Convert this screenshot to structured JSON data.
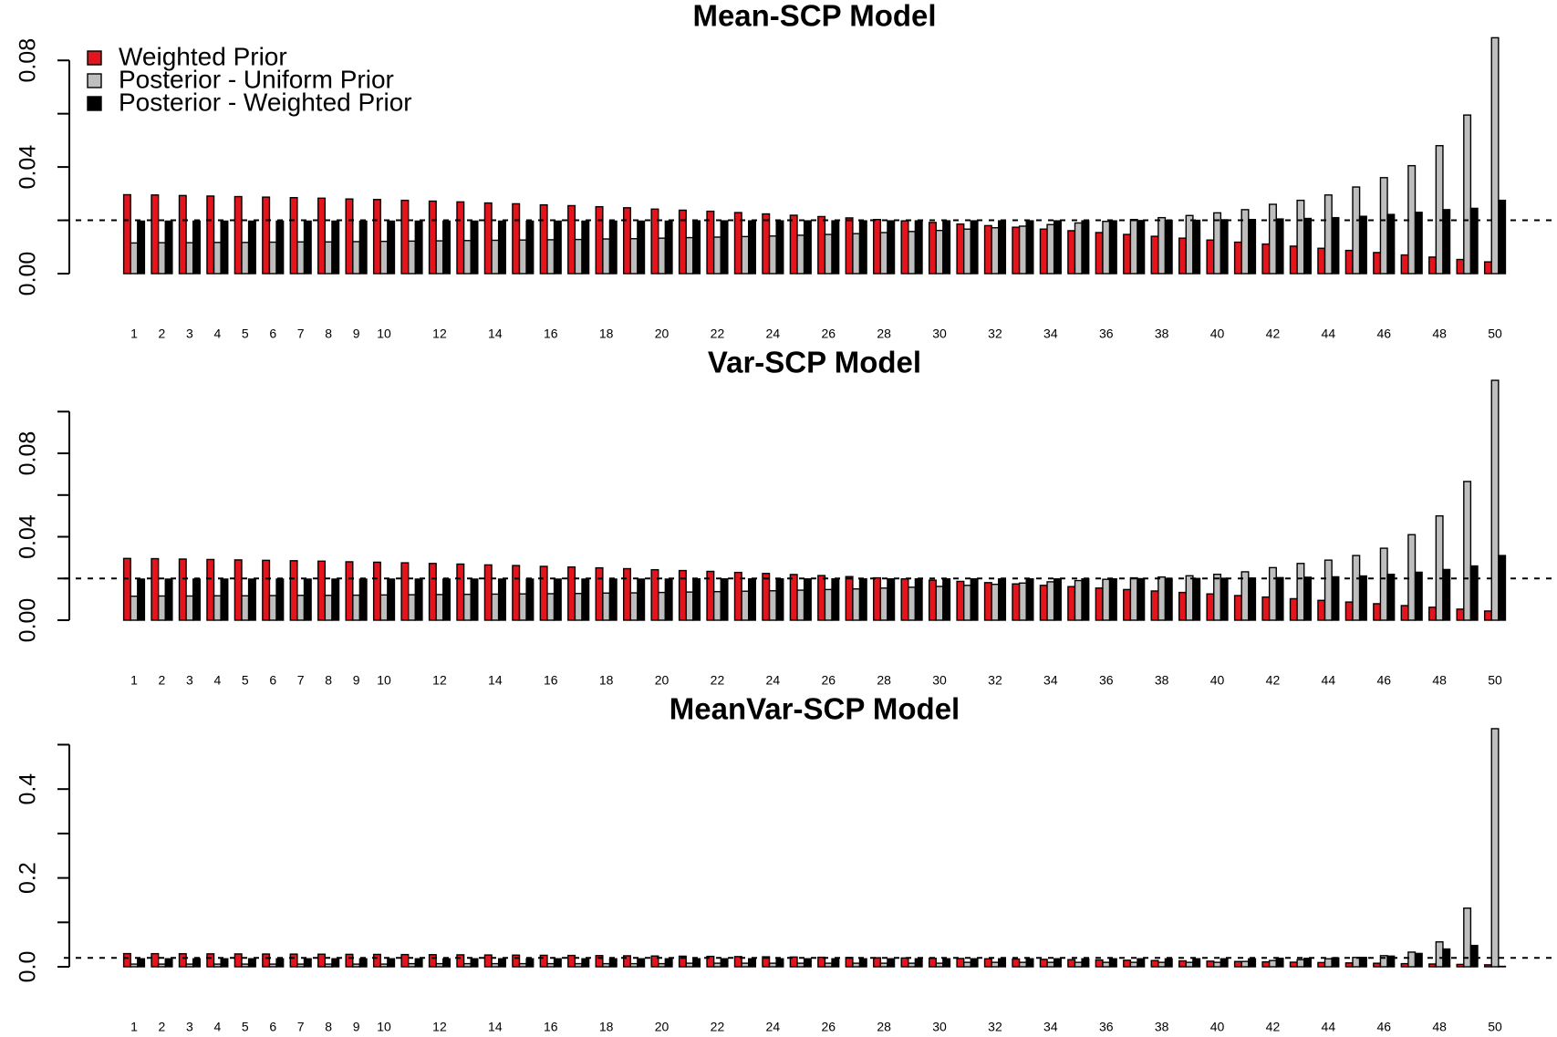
{
  "chart_data": [
    {
      "type": "bar",
      "title": "Mean-SCP Model",
      "categories": [
        1,
        2,
        3,
        4,
        5,
        6,
        7,
        8,
        9,
        10,
        null,
        12,
        null,
        14,
        null,
        16,
        null,
        18,
        null,
        20,
        null,
        22,
        null,
        24,
        null,
        26,
        null,
        28,
        null,
        30,
        null,
        32,
        null,
        34,
        null,
        36,
        null,
        38,
        null,
        40,
        null,
        42,
        null,
        44,
        null,
        46,
        null,
        48,
        null,
        50
      ],
      "series": [
        {
          "name": "Weighted Prior",
          "color": "#e3141c",
          "values": [
            0.0296,
            0.0295,
            0.0293,
            0.0291,
            0.0289,
            0.0287,
            0.0285,
            0.0283,
            0.028,
            0.0278,
            0.0275,
            0.0272,
            0.0269,
            0.0265,
            0.0262,
            0.0258,
            0.0255,
            0.0251,
            0.0247,
            0.0242,
            0.0238,
            0.0234,
            0.0229,
            0.0224,
            0.0219,
            0.0214,
            0.0209,
            0.0203,
            0.0198,
            0.0192,
            0.0186,
            0.018,
            0.0174,
            0.0167,
            0.0161,
            0.0154,
            0.0147,
            0.014,
            0.0133,
            0.0126,
            0.0118,
            0.0111,
            0.0103,
            0.0095,
            0.0087,
            0.0079,
            0.007,
            0.0062,
            0.0053,
            0.0044
          ]
        },
        {
          "name": "Posterior - Uniform Prior",
          "color": "#bebebe",
          "values": [
            0.0115,
            0.0116,
            0.0116,
            0.0117,
            0.0117,
            0.0118,
            0.0119,
            0.0119,
            0.012,
            0.0121,
            0.0122,
            0.0123,
            0.0124,
            0.0125,
            0.0126,
            0.0127,
            0.0128,
            0.013,
            0.0131,
            0.0133,
            0.0135,
            0.0137,
            0.0139,
            0.0141,
            0.0144,
            0.0147,
            0.015,
            0.0154,
            0.0158,
            0.0162,
            0.0167,
            0.0172,
            0.0178,
            0.0184,
            0.019,
            0.0196,
            0.0203,
            0.021,
            0.0218,
            0.0228,
            0.024,
            0.026,
            0.0275,
            0.0295,
            0.0325,
            0.036,
            0.0405,
            0.048,
            0.0595,
            0.0885
          ]
        },
        {
          "name": "Posterior - Weighted Prior",
          "color": "#000000",
          "values": [
            0.0197,
            0.0197,
            0.0197,
            0.0197,
            0.0197,
            0.0197,
            0.0197,
            0.0197,
            0.0197,
            0.0197,
            0.0197,
            0.0197,
            0.0197,
            0.0197,
            0.0197,
            0.0197,
            0.0197,
            0.0197,
            0.0197,
            0.0197,
            0.0198,
            0.0198,
            0.0198,
            0.0198,
            0.0198,
            0.0198,
            0.0198,
            0.0198,
            0.0198,
            0.0198,
            0.0198,
            0.0198,
            0.0198,
            0.0198,
            0.0198,
            0.0198,
            0.0199,
            0.02,
            0.02,
            0.0202,
            0.0203,
            0.0205,
            0.0207,
            0.021,
            0.0215,
            0.0222,
            0.023,
            0.024,
            0.0245,
            0.0275
          ]
        }
      ],
      "ylim": [
        0,
        0.09
      ],
      "yticks": [
        {
          "value": 0,
          "label": "0.00"
        },
        {
          "value": 0.04,
          "label": "0.04"
        },
        {
          "value": 0.08,
          "label": "0.08"
        }
      ],
      "yminorticks": [
        0.02,
        0.06
      ],
      "hline": 0.02,
      "legend": "top-left"
    },
    {
      "type": "bar",
      "title": "Var-SCP Model",
      "categories": [
        1,
        2,
        3,
        4,
        5,
        6,
        7,
        8,
        9,
        10,
        null,
        12,
        null,
        14,
        null,
        16,
        null,
        18,
        null,
        20,
        null,
        22,
        null,
        24,
        null,
        26,
        null,
        28,
        null,
        30,
        null,
        32,
        null,
        34,
        null,
        36,
        null,
        38,
        null,
        40,
        null,
        42,
        null,
        44,
        null,
        46,
        null,
        48,
        null,
        50
      ],
      "series": [
        {
          "color": "#e3141c",
          "values": [
            0.0296,
            0.0295,
            0.0293,
            0.0291,
            0.0289,
            0.0287,
            0.0285,
            0.0283,
            0.028,
            0.0278,
            0.0275,
            0.0272,
            0.0269,
            0.0265,
            0.0262,
            0.0258,
            0.0255,
            0.0251,
            0.0247,
            0.0242,
            0.0238,
            0.0234,
            0.0229,
            0.0224,
            0.0219,
            0.0214,
            0.0209,
            0.0203,
            0.0198,
            0.0192,
            0.0186,
            0.018,
            0.0174,
            0.0167,
            0.0161,
            0.0154,
            0.0147,
            0.014,
            0.0133,
            0.0126,
            0.0118,
            0.0111,
            0.0103,
            0.0095,
            0.0087,
            0.0079,
            0.007,
            0.0062,
            0.0053,
            0.0044
          ]
        },
        {
          "color": "#bebebe",
          "values": [
            0.0115,
            0.0116,
            0.0116,
            0.0117,
            0.0117,
            0.0118,
            0.0119,
            0.0119,
            0.012,
            0.0121,
            0.0122,
            0.0123,
            0.0124,
            0.0125,
            0.0126,
            0.0127,
            0.0128,
            0.013,
            0.0131,
            0.0133,
            0.0135,
            0.0137,
            0.0139,
            0.0141,
            0.0144,
            0.0147,
            0.015,
            0.0154,
            0.0158,
            0.0162,
            0.0167,
            0.0172,
            0.0178,
            0.0184,
            0.019,
            0.0196,
            0.0203,
            0.0207,
            0.0213,
            0.022,
            0.0232,
            0.0252,
            0.0272,
            0.0288,
            0.031,
            0.0345,
            0.041,
            0.05,
            0.0665,
            0.115
          ]
        },
        {
          "color": "#000000",
          "values": [
            0.0197,
            0.0197,
            0.0197,
            0.0197,
            0.0197,
            0.0197,
            0.0197,
            0.0197,
            0.0197,
            0.0197,
            0.0197,
            0.0197,
            0.0197,
            0.0197,
            0.0197,
            0.0197,
            0.0197,
            0.0197,
            0.0197,
            0.0197,
            0.0198,
            0.0198,
            0.0198,
            0.0198,
            0.0198,
            0.0198,
            0.0198,
            0.0198,
            0.0198,
            0.0198,
            0.0198,
            0.0198,
            0.0198,
            0.0198,
            0.0198,
            0.0198,
            0.0199,
            0.02,
            0.02,
            0.0201,
            0.0202,
            0.0204,
            0.0206,
            0.0208,
            0.0212,
            0.022,
            0.023,
            0.0243,
            0.026,
            0.031
          ]
        }
      ],
      "ylim": [
        0,
        0.115
      ],
      "yticks": [
        {
          "value": 0,
          "label": "0.00"
        },
        {
          "value": 0.04,
          "label": "0.04"
        },
        {
          "value": 0.08,
          "label": "0.08"
        }
      ],
      "yminorticks": [
        0.02,
        0.06,
        0.1
      ],
      "hline": 0.02
    },
    {
      "type": "bar",
      "title": "MeanVar-SCP Model",
      "categories": [
        1,
        2,
        3,
        4,
        5,
        6,
        7,
        8,
        9,
        10,
        null,
        12,
        null,
        14,
        null,
        16,
        null,
        18,
        null,
        20,
        null,
        22,
        null,
        24,
        null,
        26,
        null,
        28,
        null,
        30,
        null,
        32,
        null,
        34,
        null,
        36,
        null,
        38,
        null,
        40,
        null,
        42,
        null,
        44,
        null,
        46,
        null,
        48,
        null,
        50
      ],
      "series": [
        {
          "color": "#e3141c",
          "values": [
            0.0296,
            0.0295,
            0.0293,
            0.0291,
            0.0289,
            0.0287,
            0.0285,
            0.0283,
            0.028,
            0.0278,
            0.0275,
            0.0272,
            0.0269,
            0.0265,
            0.0262,
            0.0258,
            0.0255,
            0.0251,
            0.0247,
            0.0242,
            0.0238,
            0.0234,
            0.0229,
            0.0224,
            0.0219,
            0.0214,
            0.0209,
            0.0203,
            0.0198,
            0.0192,
            0.0186,
            0.018,
            0.0174,
            0.0167,
            0.0161,
            0.0154,
            0.0147,
            0.014,
            0.0133,
            0.0126,
            0.0118,
            0.0111,
            0.0103,
            0.0095,
            0.0087,
            0.0079,
            0.007,
            0.0062,
            0.0053,
            0.0044
          ]
        },
        {
          "color": "#bebebe",
          "values": [
            0.006,
            0.006,
            0.006,
            0.006,
            0.006,
            0.006,
            0.006,
            0.006,
            0.006,
            0.006,
            0.007,
            0.007,
            0.007,
            0.007,
            0.007,
            0.007,
            0.007,
            0.007,
            0.007,
            0.007,
            0.008,
            0.008,
            0.008,
            0.008,
            0.008,
            0.008,
            0.008,
            0.008,
            0.008,
            0.008,
            0.01,
            0.01,
            0.01,
            0.01,
            0.01,
            0.01,
            0.01,
            0.01,
            0.01,
            0.01,
            0.012,
            0.014,
            0.016,
            0.018,
            0.021,
            0.025,
            0.033,
            0.056,
            0.132,
            0.536
          ]
        },
        {
          "color": "#000000",
          "values": [
            0.018,
            0.018,
            0.018,
            0.018,
            0.018,
            0.018,
            0.018,
            0.018,
            0.018,
            0.018,
            0.018,
            0.018,
            0.018,
            0.018,
            0.018,
            0.018,
            0.018,
            0.018,
            0.018,
            0.018,
            0.018,
            0.018,
            0.018,
            0.018,
            0.018,
            0.018,
            0.018,
            0.018,
            0.018,
            0.018,
            0.018,
            0.018,
            0.018,
            0.018,
            0.018,
            0.018,
            0.018,
            0.018,
            0.018,
            0.018,
            0.018,
            0.019,
            0.019,
            0.02,
            0.021,
            0.024,
            0.03,
            0.04,
            0.048,
            0.001
          ]
        }
      ],
      "ylim": [
        0,
        0.54
      ],
      "yticks": [
        {
          "value": 0,
          "label": "0.0"
        },
        {
          "value": 0.2,
          "label": "0.2"
        },
        {
          "value": 0.4,
          "label": "0.4"
        }
      ],
      "yminorticks": [
        0.1,
        0.3,
        0.5
      ],
      "hline": 0.02
    }
  ]
}
